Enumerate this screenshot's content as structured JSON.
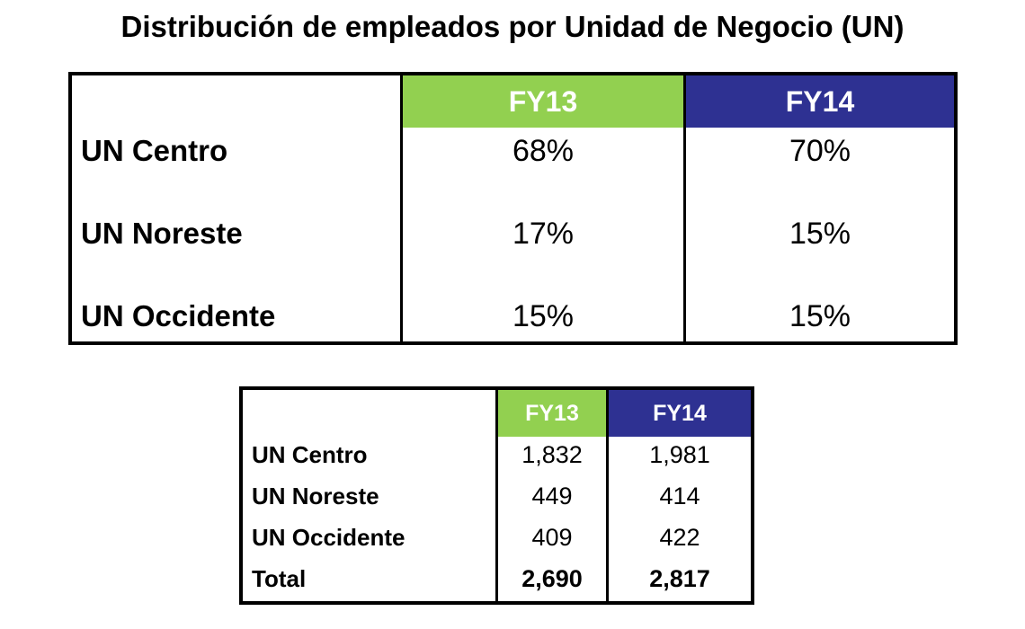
{
  "title": "Distribución de empleados por Unidad de Negocio (UN)",
  "percent_table": {
    "headers": [
      "FY13",
      "FY14"
    ],
    "rows": [
      {
        "label": "UN Centro",
        "fy13": "68%",
        "fy14": "70%"
      },
      {
        "label": "UN Noreste",
        "fy13": "17%",
        "fy14": "15%"
      },
      {
        "label": "UN Occidente",
        "fy13": "15%",
        "fy14": "15%"
      }
    ]
  },
  "count_table": {
    "headers": [
      "FY13",
      "FY14"
    ],
    "rows": [
      {
        "label": "UN Centro",
        "fy13": "1,832",
        "fy14": "1,981"
      },
      {
        "label": "UN Noreste",
        "fy13": "449",
        "fy14": "414"
      },
      {
        "label": "UN Occidente",
        "fy13": "409",
        "fy14": "422"
      },
      {
        "label": "Total",
        "fy13": "2,690",
        "fy14": "2,817"
      }
    ]
  },
  "colors": {
    "fy13_header": "#92d050",
    "fy14_header": "#2e3192"
  }
}
